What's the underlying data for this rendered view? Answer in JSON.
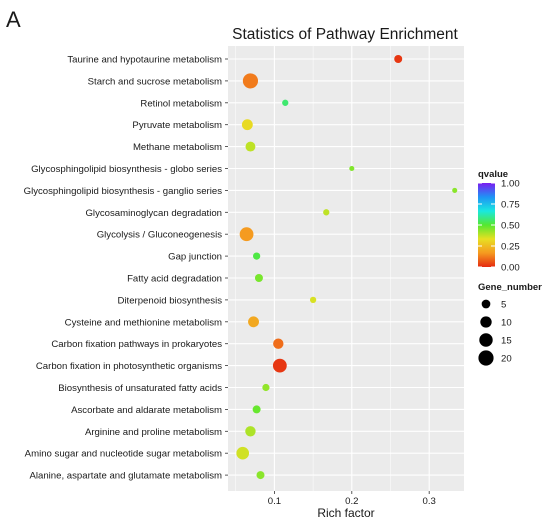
{
  "panel_letter": "A",
  "chart_data": {
    "type": "scatter",
    "title": "Statistics of Pathway Enrichment",
    "xlabel": "Rich factor",
    "ylabel": "",
    "xlim": [
      0.04,
      0.345
    ],
    "xticks": [
      0.1,
      0.2,
      0.3
    ],
    "xtick_labels": [
      "0.1",
      "0.2",
      "0.3"
    ],
    "grid": true,
    "categories": [
      "Taurine and hypotaurine metabolism",
      "Starch and sucrose metabolism",
      "Retinol metabolism",
      "Pyruvate metabolism",
      "Methane metabolism",
      "Glycosphingolipid biosynthesis - globo series",
      "Glycosphingolipid biosynthesis - ganglio series",
      "Glycosaminoglycan degradation",
      "Glycolysis / Gluconeogenesis",
      "Gap junction",
      "Fatty acid degradation",
      "Diterpenoid biosynthesis",
      "Cysteine and methionine metabolism",
      "Carbon fixation pathways in prokaryotes",
      "Carbon fixation in photosynthetic organisms",
      "Biosynthesis of unsaturated fatty acids",
      "Ascorbate and aldarate metabolism",
      "Arginine and proline metabolism",
      "Amino sugar and nucleotide sugar metabolism",
      "Alanine, aspartate and glutamate metabolism"
    ],
    "rich_factor": [
      0.26,
      0.069,
      0.114,
      0.065,
      0.069,
      0.2,
      0.333,
      0.167,
      0.064,
      0.077,
      0.08,
      0.15,
      0.073,
      0.105,
      0.107,
      0.089,
      0.077,
      0.069,
      0.059,
      0.082
    ],
    "gene_number": [
      4,
      20,
      2,
      9,
      7,
      1,
      1,
      2,
      16,
      3,
      4,
      2,
      9,
      8,
      16,
      3,
      4,
      8,
      13,
      4
    ],
    "qvalue": [
      0.02,
      0.12,
      0.56,
      0.32,
      0.38,
      0.45,
      0.44,
      0.38,
      0.17,
      0.52,
      0.46,
      0.35,
      0.2,
      0.1,
      0.02,
      0.43,
      0.48,
      0.4,
      0.36,
      0.44
    ],
    "color_legend": {
      "title": "qvalue",
      "ticks": [
        1.0,
        0.75,
        0.5,
        0.25,
        0.0
      ],
      "tick_labels": [
        "1.00",
        "0.75",
        "0.50",
        "0.25",
        "0.00"
      ],
      "gradient_colors": [
        "#7a1cf0",
        "#1f93f5",
        "#19e8e0",
        "#55e830",
        "#e7e022",
        "#f59a20",
        "#e52a10"
      ]
    },
    "size_legend": {
      "title": "Gene_number",
      "values": [
        5,
        10,
        15,
        20
      ],
      "labels": [
        "5",
        "10",
        "15",
        "20"
      ]
    }
  }
}
